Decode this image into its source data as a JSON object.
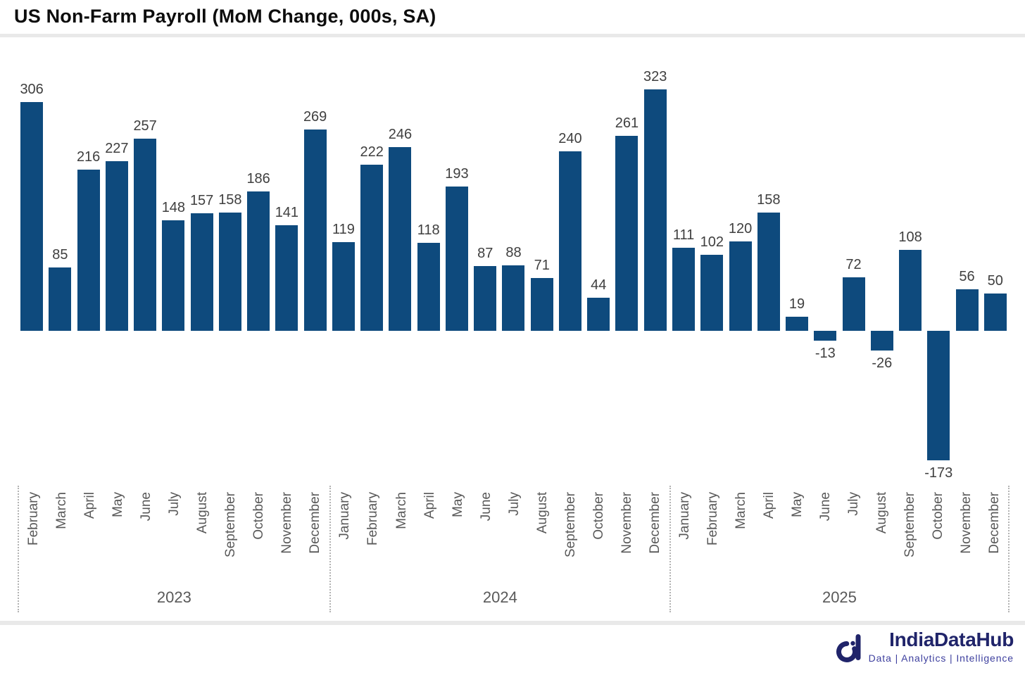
{
  "title": "US Non-Farm Payroll (MoM Change, 000s, SA)",
  "chart_data": {
    "type": "bar",
    "title": "US Non-Farm Payroll (MoM Change, 000s, SA)",
    "ylabel": "",
    "xlabel": "",
    "ylim": [
      -200,
      350
    ],
    "grid": false,
    "legend": false,
    "bar_color": "#0e4a7d",
    "value_label_color": "#3f3f3f",
    "axis_label_color": "#595959",
    "value_labels": true,
    "groups": [
      {
        "year": "2023",
        "categories": [
          "February",
          "March",
          "April",
          "May",
          "June",
          "July",
          "August",
          "September",
          "October",
          "November",
          "December"
        ],
        "values": [
          306,
          85,
          216,
          227,
          257,
          148,
          157,
          158,
          186,
          141,
          269
        ]
      },
      {
        "year": "2024",
        "categories": [
          "January",
          "February",
          "March",
          "April",
          "May",
          "June",
          "July",
          "August",
          "September",
          "October",
          "November",
          "December"
        ],
        "values": [
          119,
          222,
          246,
          118,
          193,
          87,
          88,
          71,
          240,
          44,
          261,
          323
        ]
      },
      {
        "year": "2025",
        "categories": [
          "January",
          "February",
          "March",
          "April",
          "May",
          "June",
          "July",
          "August",
          "September",
          "October",
          "November",
          "December"
        ],
        "values": [
          111,
          102,
          120,
          158,
          19,
          -13,
          72,
          -26,
          108,
          -173,
          56,
          50
        ]
      }
    ]
  },
  "branding": {
    "logo_text": "IndiaDataHub",
    "tagline": "Data | Analytics | Intelligence",
    "logo_color": "#20246a",
    "tagline_color": "#3d3f9e"
  }
}
